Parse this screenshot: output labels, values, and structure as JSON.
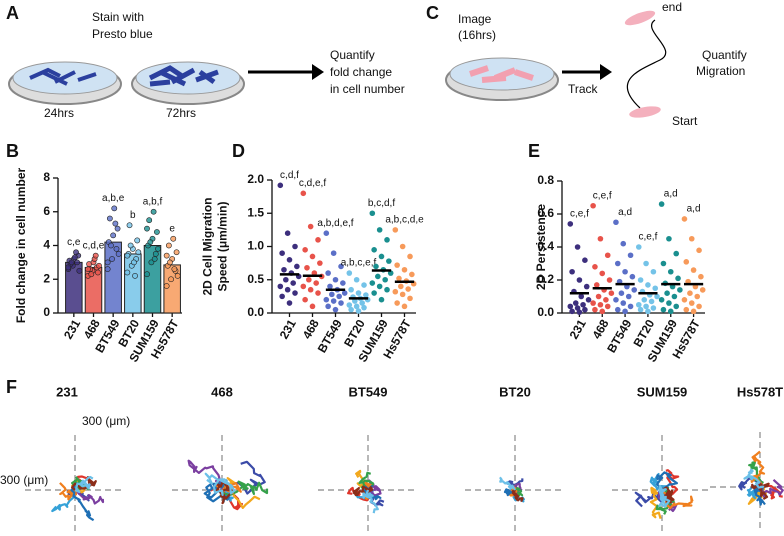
{
  "panel_labels": [
    "A",
    "C",
    "B",
    "D",
    "E",
    "F"
  ],
  "diagram_a": {
    "top_text": [
      "Stain with",
      "Presto blue"
    ],
    "times": [
      "24hrs",
      "72hrs"
    ],
    "result": [
      "Quantify",
      "fold change",
      "in cell number"
    ]
  },
  "diagram_c": {
    "image_text": [
      "Image",
      "(16hrs)"
    ],
    "arrow_text": "Track",
    "end_text": "end",
    "start_text": "Start",
    "result": [
      "Quantify",
      "Migration"
    ]
  },
  "chart_data": [
    {
      "type": "bar",
      "y_label": [
        "Fold change in cell number"
      ],
      "categories": [
        "231",
        "468",
        "BT549",
        "BT20",
        "SUM159",
        "Hs578T"
      ],
      "colors": [
        "#3d2f7d",
        "#e8534a",
        "#5b6fc7",
        "#74c3e8",
        "#1a8f8f",
        "#f79a5a"
      ],
      "values": [
        3.0,
        2.7,
        4.2,
        3.5,
        4.0,
        2.85
      ],
      "points": [
        [
          2.6,
          2.8,
          3.0,
          3.1,
          3.2,
          3.4,
          2.9,
          3.3,
          2.5,
          3.0,
          3.6,
          2.7
        ],
        [
          2.2,
          2.5,
          2.7,
          2.9,
          3.0,
          2.4,
          2.6,
          3.2,
          2.8,
          2.3,
          3.4,
          2.6
        ],
        [
          2.6,
          3.2,
          3.8,
          4.2,
          4.6,
          5.0,
          5.6,
          6.2,
          3.5,
          4.0,
          5.3,
          3.0
        ],
        [
          2.4,
          2.8,
          3.2,
          3.5,
          3.8,
          4.3,
          5.2,
          3.0,
          3.6,
          4.0,
          2.2,
          3.4
        ],
        [
          2.3,
          3.0,
          3.5,
          4.0,
          4.4,
          4.8,
          5.5,
          6.0,
          3.8,
          4.2,
          3.2,
          5.0
        ],
        [
          1.6,
          2.0,
          2.5,
          2.8,
          3.2,
          3.6,
          4.0,
          4.4,
          2.2,
          3.0,
          2.6,
          3.4
        ]
      ],
      "annotations": [
        "c,e",
        "c,d,e",
        "a,b,e",
        "b",
        "a,b,f",
        "e"
      ],
      "ylim": [
        0,
        8
      ],
      "yticks": [
        0,
        2,
        4,
        6,
        8
      ]
    },
    {
      "type": "strip",
      "y_label": [
        "2D Cell Migration",
        "Speed (μm/min)"
      ],
      "categories": [
        "231",
        "468",
        "BT549",
        "BT20",
        "SUM159",
        "Hs578T"
      ],
      "colors": [
        "#3d2f7d",
        "#e8534a",
        "#5b6fc7",
        "#74c3e8",
        "#1a8f8f",
        "#f79a5a"
      ],
      "values": [
        0.58,
        0.56,
        0.35,
        0.22,
        0.64,
        0.47
      ],
      "points": [
        [
          1.92,
          1.2,
          1.0,
          0.9,
          0.8,
          0.7,
          0.65,
          0.6,
          0.55,
          0.5,
          0.45,
          0.4,
          0.35,
          0.3,
          0.25,
          0.15
        ],
        [
          1.8,
          1.3,
          1.1,
          0.95,
          0.85,
          0.75,
          0.68,
          0.6,
          0.55,
          0.5,
          0.45,
          0.4,
          0.35,
          0.3,
          0.2,
          0.1
        ],
        [
          1.2,
          0.9,
          0.7,
          0.6,
          0.5,
          0.45,
          0.4,
          0.35,
          0.3,
          0.28,
          0.25,
          0.2,
          0.18,
          0.15,
          0.1,
          0.05
        ],
        [
          0.6,
          0.5,
          0.42,
          0.35,
          0.3,
          0.27,
          0.24,
          0.22,
          0.2,
          0.18,
          0.15,
          0.12,
          0.1,
          0.08,
          0.05,
          0.03
        ],
        [
          1.5,
          1.25,
          1.1,
          0.95,
          0.85,
          0.78,
          0.7,
          0.65,
          0.6,
          0.55,
          0.5,
          0.45,
          0.4,
          0.35,
          0.3,
          0.2
        ],
        [
          1.25,
          1.0,
          0.85,
          0.72,
          0.65,
          0.58,
          0.52,
          0.48,
          0.44,
          0.4,
          0.36,
          0.32,
          0.28,
          0.22,
          0.15,
          0.1
        ]
      ],
      "annotations": [
        "c,d,f",
        "c,d,e,f",
        "a,b,d,e,f",
        "a,b,c,e,f",
        "b,c,d,f",
        "a,b,c,d,e"
      ],
      "ylim": [
        0,
        2
      ],
      "yticks": [
        {
          "value": 0,
          "label": "0.0"
        },
        {
          "value": 0.5,
          "label": "0.5"
        },
        {
          "value": 1,
          "label": "1.0"
        },
        {
          "value": 1.5,
          "label": "1.5"
        },
        {
          "value": 2,
          "label": "2.0"
        }
      ]
    },
    {
      "type": "strip",
      "y_label": [
        "2D Persistence"
      ],
      "categories": [
        "231",
        "468",
        "BT549",
        "BT20",
        "SUM159",
        "Hs578T"
      ],
      "colors": [
        "#3d2f7d",
        "#e8534a",
        "#5b6fc7",
        "#74c3e8",
        "#1a8f8f",
        "#f79a5a"
      ],
      "values": [
        0.12,
        0.15,
        0.175,
        0.12,
        0.175,
        0.175
      ],
      "points": [
        [
          0.54,
          0.4,
          0.32,
          0.25,
          0.2,
          0.16,
          0.13,
          0.1,
          0.08,
          0.06,
          0.05,
          0.04,
          0.03,
          0.02,
          0.01,
          0.005
        ],
        [
          0.65,
          0.45,
          0.35,
          0.28,
          0.24,
          0.2,
          0.17,
          0.14,
          0.12,
          0.1,
          0.08,
          0.06,
          0.05,
          0.04,
          0.02,
          0.01
        ],
        [
          0.55,
          0.42,
          0.35,
          0.3,
          0.25,
          0.22,
          0.19,
          0.16,
          0.14,
          0.12,
          0.1,
          0.08,
          0.06,
          0.04,
          0.02,
          0.01
        ],
        [
          0.4,
          0.3,
          0.25,
          0.2,
          0.17,
          0.15,
          0.13,
          0.11,
          0.1,
          0.08,
          0.07,
          0.05,
          0.04,
          0.03,
          0.02,
          0.01
        ],
        [
          0.66,
          0.45,
          0.36,
          0.3,
          0.25,
          0.21,
          0.18,
          0.16,
          0.14,
          0.12,
          0.1,
          0.08,
          0.06,
          0.04,
          0.02,
          0.01
        ],
        [
          0.57,
          0.45,
          0.38,
          0.31,
          0.26,
          0.22,
          0.19,
          0.16,
          0.14,
          0.12,
          0.1,
          0.08,
          0.06,
          0.04,
          0.02,
          0.01
        ]
      ],
      "annotations": [
        "c,e,f",
        "c,e,f",
        "a,d",
        "c,e,f",
        "a,d",
        "a,d"
      ],
      "ylim": [
        0,
        0.8
      ],
      "yticks": [
        {
          "value": 0,
          "label": "0.0"
        },
        {
          "value": 0.2,
          "label": "0.2"
        },
        {
          "value": 0.4,
          "label": "0.4"
        },
        {
          "value": 0.6,
          "label": "0.6"
        },
        {
          "value": 0.8,
          "label": "0.8"
        }
      ]
    }
  ],
  "tracks": {
    "titles": [
      "231",
      "468",
      "BT549",
      "BT20",
      "SUM159",
      "Hs578T"
    ],
    "scale_y": "300 (μm)",
    "scale_x": "300 (μm)"
  }
}
